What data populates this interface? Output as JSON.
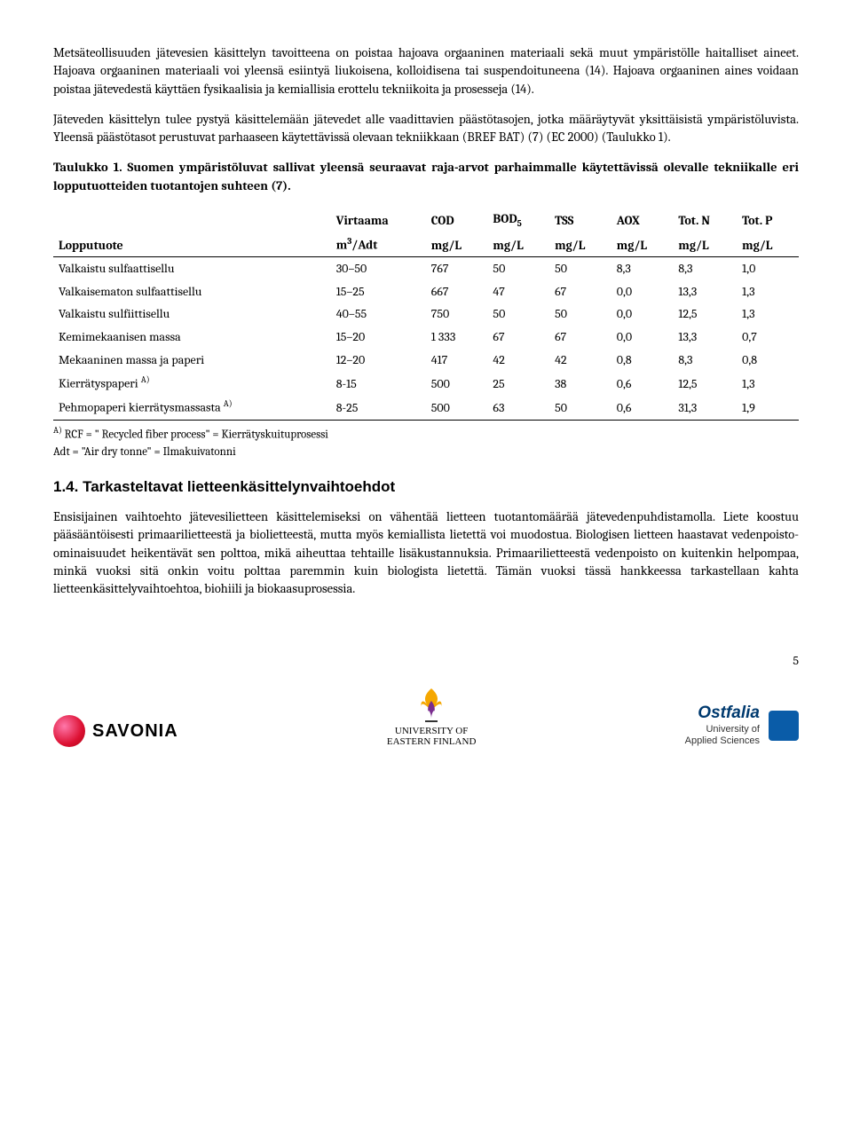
{
  "para1": "Metsäteollisuuden jätevesien käsittelyn tavoitteena on poistaa hajoava orgaaninen materiaali sekä muut ympäristölle haitalliset aineet. Hajoava orgaaninen materiaali voi yleensä esiintyä liukoisena, kolloidisena tai suspendoituneena (14). Hajoava orgaaninen aines voidaan poistaa jätevedestä käyttäen fysikaalisia ja kemiallisia erottelu tekniikoita ja prosesseja (14).",
  "para2": "Jäteveden käsittelyn tulee pystyä käsittelemään jätevedet alle vaadittavien päästötasojen, jotka määräytyvät yksittäisistä ympäristöluvista. Yleensä päästötasot perustuvat parhaaseen käytettävissä olevaan tekniikkaan (BREF BAT) (7) (EC 2000) (Taulukko 1).",
  "caption": "Taulukko 1. Suomen ympäristöluvat sallivat yleensä seuraavat raja-arvot parhaimmalle käytettävissä olevalle tekniikalle eri lopputuotteiden tuotantojen suhteen (7).",
  "headers1": [
    "",
    "Virtaama",
    "COD",
    "BOD",
    "TSS",
    "AOX",
    "Tot. N",
    "Tot. P"
  ],
  "bod_sub": "5",
  "headers2": [
    "Lopputuote",
    "m³/Adt",
    "mg/L",
    "mg/L",
    "mg/L",
    "mg/L",
    "mg/L",
    "mg/L"
  ],
  "m3_sup": "3",
  "rows": [
    [
      "Valkaistu sulfaattisellu",
      "30–50",
      "767",
      "50",
      "50",
      "8,3",
      "8,3",
      "1,0"
    ],
    [
      "Valkaisematon sulfaattisellu",
      "15–25",
      "667",
      "47",
      "67",
      "0,0",
      "13,3",
      "1,3"
    ],
    [
      "Valkaistu sulfiittisellu",
      "40–55",
      "750",
      "50",
      "50",
      "0,0",
      "12,5",
      "1,3"
    ],
    [
      "Kemimekaanisen massa",
      "15–20",
      "1 333",
      "67",
      "67",
      "0,0",
      "13,3",
      "0,7"
    ],
    [
      "Mekaaninen massa ja paperi",
      "12–20",
      "417",
      "42",
      "42",
      "0,8",
      "8,3",
      "0,8"
    ],
    [
      "Kierrätyspaperi",
      "8-15",
      "500",
      "25",
      "38",
      "0,6",
      "12,5",
      "1,3"
    ],
    [
      "Pehmopaperi kierrätysmassasta",
      "8-25",
      "500",
      "63",
      "50",
      "0,6",
      "31,3",
      "1,9"
    ]
  ],
  "row_sup": [
    "",
    "",
    "",
    "",
    "",
    "A)",
    "A)"
  ],
  "fn1_sup": "A)",
  "fn1": " RCF = \" Recycled fiber process\"  = Kierrätyskuituprosessi",
  "fn2": "Adt = \"Air dry tonne\" = Ilmakuivatonni",
  "section_title": "1.4. Tarkasteltavat lietteenkäsittelynvaihtoehdot",
  "para3": "Ensisijainen vaihtoehto jätevesilietteen käsittelemiseksi on vähentää lietteen tuotantomäärää jätevedenpuhdistamolla. Liete koostuu pääsääntöisesti primaarilietteestä ja biolietteestä, mutta myös kemiallista lietettä voi muodostua. Biologisen lietteen haastavat vedenpoisto-ominaisuudet heikentävät sen polttoa, mikä aiheuttaa tehtaille lisäkustannuksia. Primaarilietteestä vedenpoisto on kuitenkin helpompaa, minkä vuoksi sitä onkin voitu polttaa paremmin kuin biologista lietettä. Tämän vuoksi tässä hankkeessa tarkastellaan kahta lietteenkäsittelyvaihtoehtoa, biohiili ja biokaasuprosessia.",
  "page_num": "5",
  "savonia": "SAVONIA",
  "uef1": "UNIVERSITY OF",
  "uef2": "EASTERN FINLAND",
  "ostfalia1": "Ostfalia",
  "ostfalia2": "University of",
  "ostfalia3": "Applied Sciences"
}
